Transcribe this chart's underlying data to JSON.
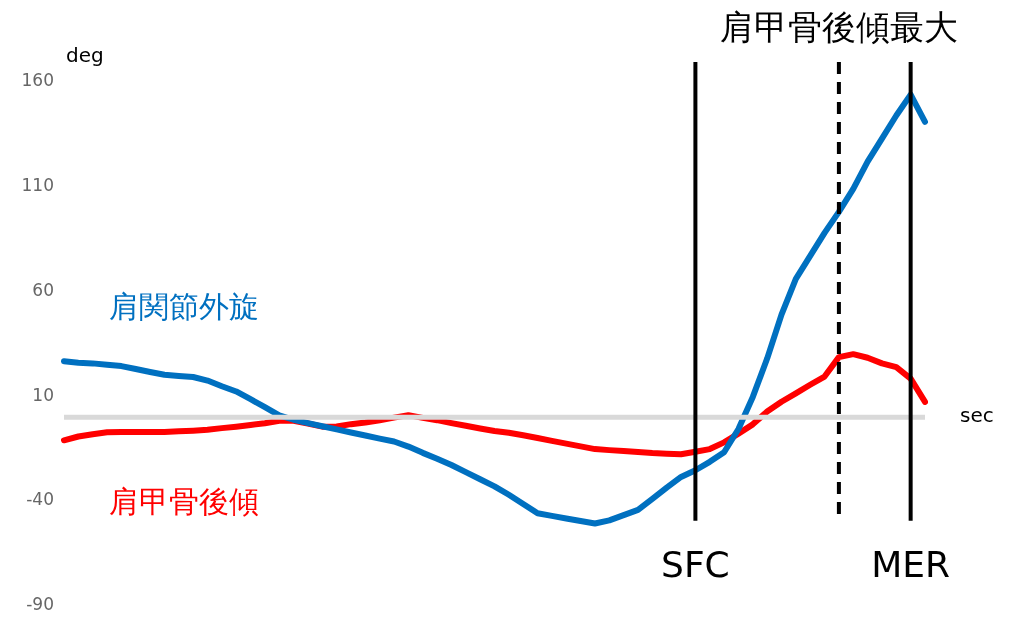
{
  "chart_data": {
    "type": "line",
    "xlabel": "sec",
    "ylabel": "deg",
    "categories": [
      null,
      null,
      null,
      null,
      null,
      null,
      null,
      null,
      null,
      null,
      null,
      null,
      null,
      null,
      null,
      null,
      null,
      null,
      null,
      null,
      null,
      null,
      null,
      null,
      null,
      null,
      null,
      null,
      null,
      null,
      null,
      null,
      null,
      null,
      null,
      null,
      null,
      null,
      null,
      null,
      null,
      null,
      null,
      null,
      "SFC",
      null,
      null,
      null,
      null,
      null,
      null,
      null,
      null,
      null,
      "肩甲骨後傾最大",
      null,
      null,
      null,
      null,
      "MER",
      null
    ],
    "ylim": [
      -90,
      160
    ],
    "yticks": [
      160,
      110,
      60,
      10,
      -40,
      -90
    ],
    "grid": false,
    "legend": false,
    "marker": "none",
    "line_style": "solid",
    "series": [
      {
        "name": "肩関節外旋",
        "color": "#0070c0",
        "values": [
          26.7,
          26,
          25.7,
          25,
          24.4,
          23,
          21.6,
          20.3,
          19.7,
          19.2,
          17.5,
          14.8,
          12.3,
          8.6,
          4.8,
          0.9,
          -1.2,
          -2.8,
          -4.3,
          -5.8,
          -7.3,
          -8.7,
          -10.2,
          -11.6,
          -14,
          -17,
          -19.8,
          -22.8,
          -26.2,
          -29.6,
          -33,
          -37,
          -41.4,
          -45.8,
          -47.1,
          -48.3,
          -49.5,
          -50.7,
          -49.2,
          -46.7,
          -44.2,
          -39,
          -33.6,
          -28.5,
          -25.3,
          -21.3,
          -16.7,
          -5.6,
          9.7,
          28,
          49,
          66,
          77,
          88,
          98,
          109,
          122,
          133,
          144,
          154,
          141
        ]
      },
      {
        "name": "肩甲骨後傾",
        "color": "#ff0000",
        "values": [
          -11,
          -9.2,
          -8.1,
          -7.2,
          -7,
          -7,
          -7,
          -7,
          -6.7,
          -6.4,
          -6,
          -5.2,
          -4.5,
          -3.7,
          -2.9,
          -1.7,
          -1.7,
          -3,
          -4.5,
          -4.4,
          -3.3,
          -2.5,
          -1.4,
          -0.2,
          1,
          -0.3,
          -1.4,
          -2.8,
          -4.1,
          -5.4,
          -6.6,
          -7.4,
          -8.6,
          -9.9,
          -11.3,
          -12.6,
          -13.9,
          -15.2,
          -15.7,
          -16.1,
          -16.6,
          -17.1,
          -17.4,
          -17.7,
          -16.5,
          -15.2,
          -12,
          -7.8,
          -3.4,
          2.7,
          7.4,
          11.4,
          15.5,
          19.4,
          28.7,
          30.1,
          28.4,
          25.7,
          23.9,
          18.4,
          7.3
        ]
      }
    ],
    "ref_lines": [
      {
        "axis": "x",
        "value": "SFC",
        "line_style": "solid",
        "color": "#000000"
      },
      {
        "axis": "x",
        "value": "肩甲骨後傾最大",
        "line_style": "dashed",
        "color": "#000000"
      },
      {
        "axis": "x",
        "value": "MER",
        "line_style": "solid",
        "color": "#000000"
      }
    ]
  }
}
